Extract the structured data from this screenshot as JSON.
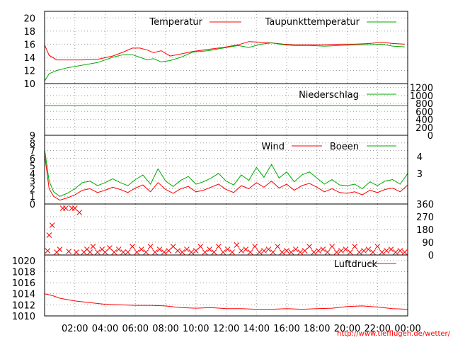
{
  "footer_url": "http://www.tiefflugen.de/wetter/",
  "colors": {
    "red": "#ff0000",
    "green": "#00aa00",
    "grid": "#a0a0a0"
  },
  "chart_data": [
    {
      "type": "line",
      "panel": "temperature",
      "ylim": [
        10,
        21
      ],
      "y_ticks": [
        "10",
        "12",
        "14",
        "16",
        "18",
        "20"
      ],
      "legend_placement": "top-right",
      "series": [
        {
          "name": "Temperatur",
          "color": "#ff0000",
          "x": [
            0,
            0.3,
            0.8,
            1.5,
            2.5,
            3.5,
            4.5,
            5.2,
            5.8,
            6.3,
            6.8,
            7.2,
            7.7,
            8.3,
            9.0,
            9.8,
            10.8,
            11.8,
            12.8,
            13.5,
            14.3,
            15.0,
            15.8,
            16.5,
            17.5,
            18.5,
            19.5,
            20.5,
            21.5,
            22.3,
            23.0,
            23.8
          ],
          "values": [
            15.9,
            14.3,
            13.6,
            13.6,
            13.6,
            13.7,
            14.2,
            14.8,
            15.4,
            15.4,
            15.1,
            14.7,
            15.0,
            14.2,
            14.5,
            14.9,
            15.2,
            15.5,
            15.9,
            16.4,
            16.3,
            16.2,
            16.0,
            15.9,
            15.9,
            15.9,
            16.0,
            16.0,
            16.1,
            16.3,
            16.1,
            16.0
          ]
        },
        {
          "name": "Taupunkttemperatur",
          "color": "#00aa00",
          "x": [
            0,
            0.3,
            0.8,
            1.5,
            2.5,
            3.5,
            4.5,
            5.2,
            5.8,
            6.3,
            6.8,
            7.2,
            7.7,
            8.3,
            9.0,
            9.8,
            10.8,
            11.8,
            12.8,
            13.5,
            14.3,
            15.0,
            15.8,
            16.5,
            17.5,
            18.5,
            19.5,
            20.5,
            21.5,
            22.3,
            23.0,
            23.8
          ],
          "values": [
            10.4,
            11.5,
            12.0,
            12.4,
            12.8,
            13.2,
            14.0,
            14.4,
            14.4,
            14.0,
            13.6,
            13.8,
            13.3,
            13.5,
            14.0,
            14.8,
            15.0,
            15.4,
            15.8,
            15.5,
            16.0,
            16.2,
            15.9,
            15.8,
            15.8,
            15.7,
            15.8,
            15.9,
            15.9,
            16.0,
            15.7,
            15.6
          ]
        }
      ]
    },
    {
      "type": "line",
      "panel": "precipitation",
      "ylim": [
        0,
        1300
      ],
      "y_ticks_right": [
        "0",
        "200",
        "400",
        "600",
        "800",
        "1000",
        "1200"
      ],
      "series": [
        {
          "name": "Niederschlag",
          "color": "#00aa00",
          "x": [
            0,
            24
          ],
          "values": [
            0,
            0
          ]
        }
      ]
    },
    {
      "type": "line",
      "panel": "wind",
      "ylim": [
        0,
        9
      ],
      "y_ticks": [
        "0",
        "1",
        "2",
        "3",
        "4",
        "5",
        "6",
        "7",
        "8",
        "9"
      ],
      "y_ticks_right": [
        "3",
        "4"
      ],
      "series": [
        {
          "name": "Wind",
          "color": "#ff0000",
          "x": [
            0,
            0.3,
            0.6,
            1.0,
            1.5,
            2.0,
            2.5,
            3.0,
            3.5,
            4.0,
            4.5,
            5.0,
            5.5,
            6.0,
            6.5,
            7.0,
            7.5,
            8.0,
            8.5,
            9.0,
            9.5,
            10.0,
            10.5,
            11.0,
            11.5,
            12.0,
            12.5,
            13.0,
            13.5,
            14.0,
            14.5,
            15.0,
            15.5,
            16.0,
            16.5,
            17.0,
            17.5,
            18.0,
            18.5,
            19.0,
            19.5,
            20.0,
            20.5,
            21.0,
            21.5,
            22.0,
            22.5,
            23.0,
            23.5,
            24.0
          ],
          "values": [
            6.5,
            2.0,
            1.0,
            0.5,
            0.8,
            1.2,
            1.8,
            2.0,
            1.5,
            1.8,
            2.2,
            1.9,
            1.5,
            2.1,
            2.5,
            1.6,
            2.8,
            1.9,
            1.4,
            2.0,
            2.3,
            1.6,
            1.8,
            2.2,
            2.6,
            1.9,
            1.5,
            2.4,
            2.0,
            2.8,
            2.2,
            3.0,
            2.1,
            2.6,
            1.8,
            2.4,
            2.7,
            2.2,
            1.6,
            2.0,
            1.5,
            1.4,
            1.6,
            1.2,
            1.8,
            1.5,
            1.9,
            2.1,
            1.6,
            2.5
          ]
        },
        {
          "name": "Boeen",
          "color": "#00aa00",
          "x": [
            0,
            0.3,
            0.6,
            1.0,
            1.5,
            2.0,
            2.5,
            3.0,
            3.5,
            4.0,
            4.5,
            5.0,
            5.5,
            6.0,
            6.5,
            7.0,
            7.5,
            8.0,
            8.5,
            9.0,
            9.5,
            10.0,
            10.5,
            11.0,
            11.5,
            12.0,
            12.5,
            13.0,
            13.5,
            14.0,
            14.5,
            15.0,
            15.5,
            16.0,
            16.5,
            17.0,
            17.5,
            18.0,
            18.5,
            19.0,
            19.5,
            20.0,
            20.5,
            21.0,
            21.5,
            22.0,
            22.5,
            23.0,
            23.5,
            24.0
          ],
          "values": [
            7.2,
            3.0,
            1.6,
            1.0,
            1.4,
            2.0,
            2.8,
            3.0,
            2.4,
            2.8,
            3.3,
            2.8,
            2.4,
            3.2,
            3.8,
            2.6,
            4.6,
            3.0,
            2.3,
            3.1,
            3.6,
            2.6,
            2.9,
            3.4,
            4.0,
            3.0,
            2.5,
            3.8,
            3.1,
            4.8,
            3.5,
            5.2,
            3.4,
            4.2,
            2.9,
            3.8,
            4.2,
            3.4,
            2.6,
            3.2,
            2.5,
            2.4,
            2.6,
            2.0,
            2.9,
            2.4,
            3.0,
            3.2,
            2.6,
            4.0
          ]
        }
      ]
    },
    {
      "type": "scatter",
      "panel": "wind_direction",
      "ylim": [
        0,
        360
      ],
      "y_ticks_right": [
        "0",
        "90",
        "180",
        "270",
        "360"
      ],
      "series": [
        {
          "name": "",
          "color": "#ff0000",
          "x": [
            0.2,
            0.3,
            0.5,
            0.8,
            1.0,
            1.2,
            1.4,
            1.6,
            1.8,
            2.0,
            2.1,
            2.3,
            2.6,
            2.8,
            3.0,
            3.2,
            3.5,
            3.8,
            4.0,
            4.3,
            4.6,
            4.9,
            5.2,
            5.5,
            5.8,
            6.1,
            6.4,
            6.7,
            7.0,
            7.3,
            7.6,
            7.9,
            8.2,
            8.5,
            8.8,
            9.1,
            9.4,
            9.7,
            10.0,
            10.3,
            10.6,
            10.9,
            11.2,
            11.5,
            11.8,
            12.1,
            12.4,
            12.7,
            13.0,
            13.3,
            13.6,
            13.9,
            14.2,
            14.5,
            14.8,
            15.1,
            15.4,
            15.7,
            16.0,
            16.3,
            16.6,
            16.9,
            17.2,
            17.5,
            17.8,
            18.1,
            18.4,
            18.7,
            19.0,
            19.3,
            19.6,
            19.9,
            20.2,
            20.5,
            20.8,
            21.1,
            21.4,
            21.7,
            22.0,
            22.3,
            22.6,
            22.9,
            23.2,
            23.5,
            23.8
          ],
          "values": [
            30,
            140,
            210,
            20,
            40,
            330,
            330,
            25,
            330,
            330,
            20,
            300,
            20,
            40,
            20,
            60,
            20,
            40,
            20,
            50,
            20,
            40,
            20,
            20,
            60,
            20,
            40,
            20,
            60,
            20,
            40,
            20,
            30,
            60,
            30,
            20,
            40,
            20,
            30,
            60,
            20,
            40,
            20,
            60,
            20,
            40,
            20,
            70,
            30,
            40,
            20,
            60,
            20,
            30,
            40,
            20,
            60,
            20,
            30,
            20,
            40,
            20,
            30,
            60,
            20,
            30,
            40,
            20,
            60,
            20,
            30,
            40,
            20,
            60,
            20,
            30,
            40,
            20,
            60,
            20,
            30,
            40,
            20,
            30,
            20
          ]
        }
      ]
    },
    {
      "type": "line",
      "panel": "pressure",
      "ylim": [
        1010,
        1021
      ],
      "y_ticks": [
        "1010",
        "1012",
        "1014",
        "1016",
        "1018",
        "1020"
      ],
      "x_ticks": [
        "02:00",
        "04:00",
        "06:00",
        "08:00",
        "10:00",
        "12:00",
        "14:00",
        "16:00",
        "18:00",
        "20:00",
        "22:00",
        "00:00"
      ],
      "series": [
        {
          "name": "Luftdruck",
          "color": "#ff0000",
          "x": [
            0,
            0.5,
            1.0,
            2.0,
            3.0,
            4.0,
            5.0,
            6.0,
            7.0,
            8.0,
            9.0,
            10.0,
            11.0,
            12.0,
            13.0,
            14.0,
            15.0,
            16.0,
            17.0,
            18.0,
            19.0,
            20.0,
            21.0,
            22.0,
            23.0,
            24.0
          ],
          "values": [
            1014.0,
            1013.7,
            1013.2,
            1012.7,
            1012.4,
            1012.1,
            1012.0,
            1011.9,
            1011.9,
            1011.8,
            1011.5,
            1011.4,
            1011.5,
            1011.3,
            1011.3,
            1011.2,
            1011.2,
            1011.3,
            1011.2,
            1011.3,
            1011.4,
            1011.7,
            1011.8,
            1011.6,
            1011.3,
            1011.2
          ]
        }
      ]
    }
  ]
}
